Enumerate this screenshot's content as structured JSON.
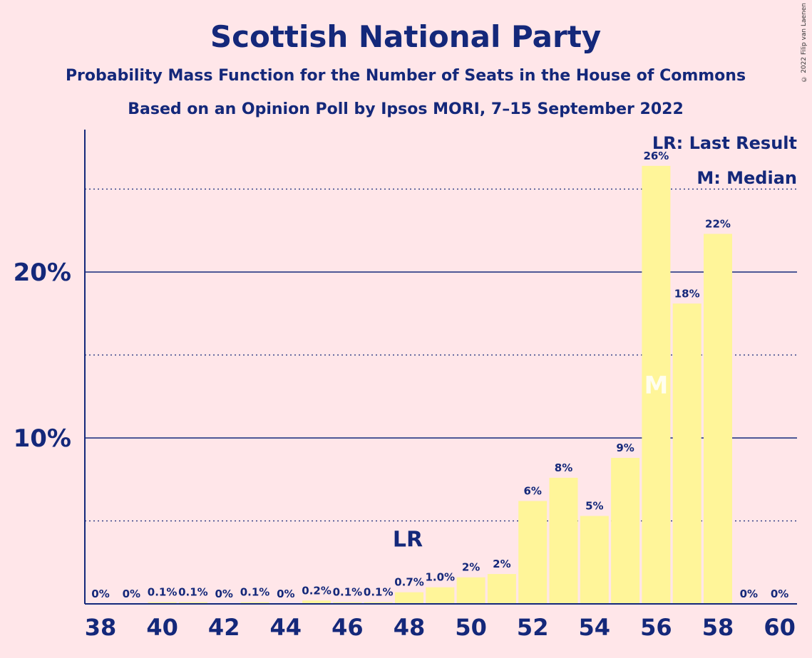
{
  "chart_data": {
    "type": "bar",
    "title": "Scottish National Party",
    "subtitle": "Probability Mass Function for the Number of Seats in the House of Commons",
    "subtitle2": "Based on an Opinion Poll by Ipsos MORI, 7–15 September 2022",
    "x": [
      38,
      39,
      40,
      41,
      42,
      43,
      44,
      45,
      46,
      47,
      48,
      49,
      50,
      51,
      52,
      53,
      54,
      55,
      56,
      57,
      58,
      59,
      60
    ],
    "values": [
      0,
      0,
      0.1,
      0.1,
      0,
      0.1,
      0,
      0.2,
      0.1,
      0.1,
      0.7,
      1.0,
      1.6,
      1.8,
      6.2,
      7.6,
      5.3,
      8.8,
      26.4,
      18.1,
      22.3,
      0,
      0
    ],
    "labels": [
      "0%",
      "0%",
      "0.1%",
      "0.1%",
      "0%",
      "0.1%",
      "0%",
      "0.2%",
      "0.1%",
      "0.1%",
      "0.7%",
      "1.0%",
      "2%",
      "2%",
      "6%",
      "8%",
      "5%",
      "9%",
      "26%",
      "18%",
      "22%",
      "0%",
      "0%"
    ],
    "x_ticks": [
      "38",
      "40",
      "42",
      "44",
      "46",
      "48",
      "50",
      "52",
      "54",
      "56",
      "58",
      "60"
    ],
    "y_ticks": [
      "10%",
      "20%"
    ],
    "ylim": [
      0,
      28
    ],
    "last_result_seat": 48,
    "median_seat": 56,
    "lr_marker": "LR",
    "median_marker": "M",
    "legend": [
      "LR: Last Result",
      "M: Median"
    ],
    "legend_position": "top-right",
    "grid": true
  },
  "copyright": "© 2022 Filip van Laenen",
  "colors": {
    "background": "#ffe6e9",
    "bar": "#fff599",
    "text": "#14287a"
  }
}
